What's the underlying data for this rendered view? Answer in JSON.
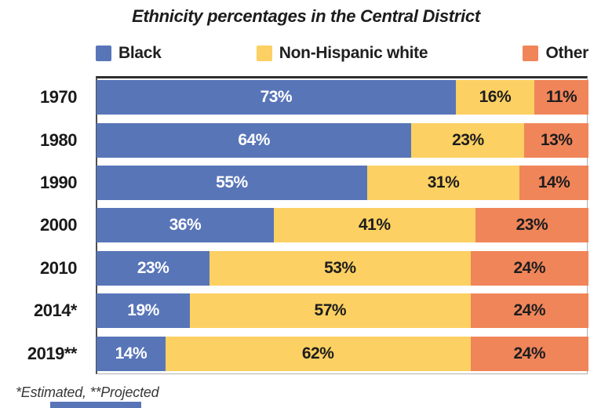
{
  "title": "Ethnicity percentages in the Central District",
  "footnote": "*Estimated, **Projected",
  "colors": {
    "black_series": "#5875b8",
    "white_series": "#fcd062",
    "other_series": "#f0855a",
    "label_on_blue": "#ffffff",
    "label_on_light": "#1d1d1d"
  },
  "legend": [
    {
      "label": "Black",
      "color": "#5875b8"
    },
    {
      "label": "Non-Hispanic white",
      "color": "#fcd062"
    },
    {
      "label": "Other",
      "color": "#f0855a"
    }
  ],
  "chart_data": {
    "type": "bar",
    "orientation": "horizontal-stacked",
    "title": "Ethnicity percentages in the Central District",
    "categories": [
      "1970",
      "1980",
      "1990",
      "2000",
      "2010",
      "2014*",
      "2019**"
    ],
    "series": [
      {
        "name": "Black",
        "color": "#5875b8",
        "label_color": "#ffffff",
        "values": [
          73,
          64,
          55,
          36,
          23,
          19,
          14
        ]
      },
      {
        "name": "Non-Hispanic white",
        "color": "#fcd062",
        "label_color": "#1d1d1d",
        "values": [
          16,
          23,
          31,
          41,
          53,
          57,
          62
        ]
      },
      {
        "name": "Other",
        "color": "#f0855a",
        "label_color": "#1d1d1d",
        "values": [
          11,
          13,
          14,
          23,
          24,
          24,
          24
        ]
      }
    ],
    "value_suffix": "%",
    "xlim": [
      0,
      100
    ],
    "grid": false,
    "legend_position": "top",
    "annotations": "*Estimated, **Projected"
  }
}
